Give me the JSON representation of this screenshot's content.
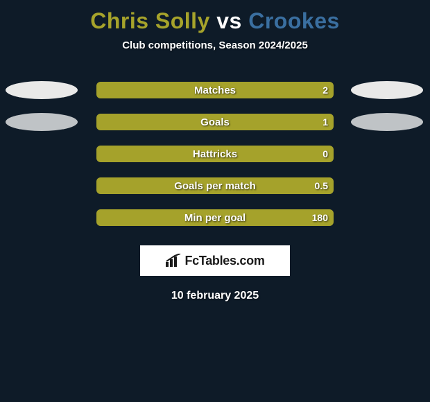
{
  "title": {
    "player1": "Chris Solly",
    "vs": "vs",
    "player2": "Crookes",
    "player1_color": "#a6a32b",
    "vs_color": "#ffffff",
    "player2_color": "#3a6fa0"
  },
  "subtitle": "Club competitions, Season 2024/2025",
  "colors": {
    "left_fill": "#a5a22b",
    "right_fill": "#3a6fa0",
    "track": "#252a2e",
    "ellipse_white": "#e9e9e8",
    "ellipse_grey": "#bfc3c6",
    "background": "#0e1b28"
  },
  "rows": [
    {
      "label": "Matches",
      "left_value": "",
      "right_value": "2",
      "left_pct": 0,
      "right_pct": 100,
      "show_ellipses": true,
      "ellipse_left_color": "#e9e9e8",
      "ellipse_right_color": "#e9e9e8"
    },
    {
      "label": "Goals",
      "left_value": "",
      "right_value": "1",
      "left_pct": 0,
      "right_pct": 100,
      "show_ellipses": true,
      "ellipse_left_color": "#bfc3c6",
      "ellipse_right_color": "#bfc3c6"
    },
    {
      "label": "Hattricks",
      "left_value": "",
      "right_value": "0",
      "left_pct": 0,
      "right_pct": 100,
      "show_ellipses": false
    },
    {
      "label": "Goals per match",
      "left_value": "",
      "right_value": "0.5",
      "left_pct": 0,
      "right_pct": 100,
      "show_ellipses": false
    },
    {
      "label": "Min per goal",
      "left_value": "",
      "right_value": "180",
      "left_pct": 0,
      "right_pct": 100,
      "show_ellipses": false
    }
  ],
  "brand": "FcTables.com",
  "date": "10 february 2025"
}
